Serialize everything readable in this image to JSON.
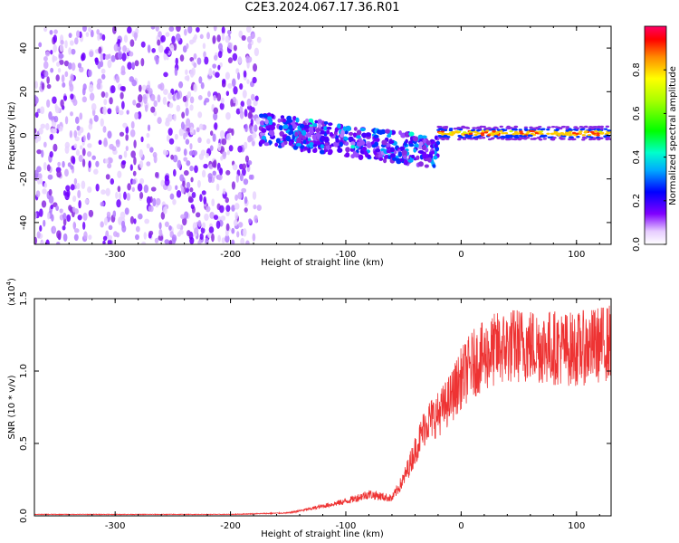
{
  "title": "C2E3.2024.067.17.36.R01",
  "chart_data": [
    {
      "type": "heatmap",
      "xlabel": "Height of straight line (km)",
      "ylabel": "Frequency (Hz)",
      "xlim": [
        -370,
        130
      ],
      "ylim": [
        -50,
        50
      ],
      "xticks": [
        -300,
        -200,
        -100,
        0,
        100
      ],
      "yticks": [
        -40,
        -20,
        0,
        20,
        40
      ],
      "colorbar": {
        "label": "Normalized spectral amplitude",
        "range": [
          0,
          1
        ],
        "ticks": [
          "0.0",
          "0.2",
          "0.4",
          "0.6",
          "0.8"
        ]
      },
      "regions": [
        {
          "x_range": [
            -370,
            -175
          ],
          "y_range": [
            -50,
            50
          ],
          "amplitude": 0.15,
          "description": "noise"
        },
        {
          "x_range": [
            -175,
            -20
          ],
          "center_freq_start": 3,
          "center_freq_end": -8,
          "amplitude": 0.5
        },
        {
          "x_range": [
            -20,
            130
          ],
          "center_freq": 1,
          "amplitude": 0.9
        }
      ]
    },
    {
      "type": "line",
      "xlabel": "Height of straight line (km)",
      "ylabel": "SNR (10 * v/v)",
      "yscale_note": "(x10",
      "yscale_exp": "4",
      "xlim": [
        -370,
        130
      ],
      "ylim": [
        0,
        1.5
      ],
      "xticks": [
        -300,
        -200,
        -100,
        0,
        100
      ],
      "yticks": [
        "0.0",
        "0.5",
        "1.0",
        "1.5"
      ],
      "color": "#ee3333",
      "series": [
        {
          "x": [
            -370,
            -300,
            -200,
            -150,
            -130,
            -100,
            -80,
            -60,
            -50,
            -40,
            -30,
            -20,
            -10,
            0,
            10,
            20,
            30,
            50,
            70,
            100,
            130
          ],
          "values": [
            0.01,
            0.01,
            0.01,
            0.02,
            0.05,
            0.1,
            0.15,
            0.12,
            0.25,
            0.45,
            0.65,
            0.7,
            0.8,
            0.95,
            1.05,
            1.1,
            1.15,
            1.18,
            1.17,
            1.15,
            1.2
          ]
        }
      ]
    }
  ]
}
